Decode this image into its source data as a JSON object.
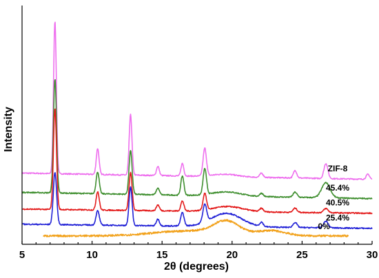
{
  "chart_data": {
    "type": "line",
    "xlabel": "2θ (degrees)",
    "ylabel": "Intensity",
    "xlim": [
      5,
      30
    ],
    "xticks": [
      "5",
      "10",
      "15",
      "20",
      "25",
      "30"
    ],
    "y_ticks_shown": false,
    "grid": false,
    "offset_stacked": true,
    "series": [
      {
        "name": "ZIF-8",
        "color": "#ee6fee",
        "start_x": 5,
        "end_x": 30,
        "baseline": 8.5,
        "baseline_slope": -0.03,
        "bump": {
          "x": 19.5,
          "height": 0.3,
          "width": 1.2
        },
        "peaks": [
          {
            "x": 7.35,
            "height": 18.2,
            "width": 0.1
          },
          {
            "x": 10.4,
            "height": 3.1,
            "width": 0.1
          },
          {
            "x": 12.75,
            "height": 7.2,
            "width": 0.1
          },
          {
            "x": 14.7,
            "height": 1.1,
            "width": 0.1
          },
          {
            "x": 16.45,
            "height": 1.5,
            "width": 0.1
          },
          {
            "x": 18.05,
            "height": 3.3,
            "width": 0.12
          },
          {
            "x": 22.1,
            "height": 0.5,
            "width": 0.12
          },
          {
            "x": 24.5,
            "height": 0.9,
            "width": 0.12
          },
          {
            "x": 26.7,
            "height": 1.8,
            "width": 0.14
          },
          {
            "x": 29.7,
            "height": 0.6,
            "width": 0.12
          }
        ]
      },
      {
        "name": "45.4%",
        "color": "#3e8e2e",
        "start_x": 5,
        "end_x": 30,
        "baseline": 6.2,
        "baseline_slope": -0.03,
        "bump": {
          "x": 19.6,
          "height": 0.5,
          "width": 1.4
        },
        "peaks": [
          {
            "x": 7.35,
            "height": 13.6,
            "width": 0.11
          },
          {
            "x": 10.4,
            "height": 2.6,
            "width": 0.11
          },
          {
            "x": 12.75,
            "height": 5.2,
            "width": 0.11
          },
          {
            "x": 14.7,
            "height": 0.8,
            "width": 0.11
          },
          {
            "x": 16.45,
            "height": 2.3,
            "width": 0.11
          },
          {
            "x": 18.05,
            "height": 3.1,
            "width": 0.12
          },
          {
            "x": 22.1,
            "height": 0.4,
            "width": 0.12
          },
          {
            "x": 24.5,
            "height": 0.6,
            "width": 0.14
          },
          {
            "x": 26.7,
            "height": 1.8,
            "width": 0.3
          }
        ]
      },
      {
        "name": "40.5%",
        "color": "#e31a1a",
        "start_x": 5,
        "end_x": 30,
        "baseline": 4.2,
        "baseline_slope": -0.02,
        "bump": {
          "x": 19.7,
          "height": 0.6,
          "width": 1.5
        },
        "peaks": [
          {
            "x": 7.35,
            "height": 12.0,
            "width": 0.11
          },
          {
            "x": 10.4,
            "height": 2.2,
            "width": 0.11
          },
          {
            "x": 12.75,
            "height": 4.5,
            "width": 0.11
          },
          {
            "x": 14.7,
            "height": 0.7,
            "width": 0.11
          },
          {
            "x": 16.45,
            "height": 1.2,
            "width": 0.11
          },
          {
            "x": 18.05,
            "height": 2.0,
            "width": 0.12
          },
          {
            "x": 22.1,
            "height": 0.4,
            "width": 0.12
          },
          {
            "x": 24.5,
            "height": 0.5,
            "width": 0.14
          },
          {
            "x": 26.7,
            "height": 0.5,
            "width": 0.16
          }
        ]
      },
      {
        "name": "25.4%",
        "color": "#1f1fd6",
        "start_x": 5,
        "end_x": 30,
        "baseline": 2.4,
        "baseline_slope": -0.02,
        "bump": {
          "x": 19.6,
          "height": 1.6,
          "width": 1.5
        },
        "peaks": [
          {
            "x": 7.35,
            "height": 6.2,
            "width": 0.12
          },
          {
            "x": 10.4,
            "height": 1.7,
            "width": 0.12
          },
          {
            "x": 12.75,
            "height": 4.6,
            "width": 0.11
          },
          {
            "x": 14.7,
            "height": 0.8,
            "width": 0.11
          },
          {
            "x": 16.45,
            "height": 1.6,
            "width": 0.12
          },
          {
            "x": 18.05,
            "height": 2.1,
            "width": 0.14
          },
          {
            "x": 22.1,
            "height": 0.5,
            "width": 0.12
          },
          {
            "x": 24.5,
            "height": 0.6,
            "width": 0.14
          },
          {
            "x": 26.7,
            "height": 0.8,
            "width": 0.16
          }
        ]
      },
      {
        "name": "0%",
        "color": "#f2a21c",
        "start_x": 6.5,
        "end_x": 28.3,
        "baseline": 1.0,
        "baseline_slope": 0,
        "bump": {
          "x": 19.5,
          "height": 0.0,
          "width": 1.0
        },
        "peaks": [
          {
            "x": 17.0,
            "height": 0.6,
            "width": 2.5
          },
          {
            "x": 19.6,
            "height": 1.5,
            "width": 0.9
          },
          {
            "x": 22.8,
            "height": 0.6,
            "width": 1.0
          }
        ]
      }
    ]
  }
}
